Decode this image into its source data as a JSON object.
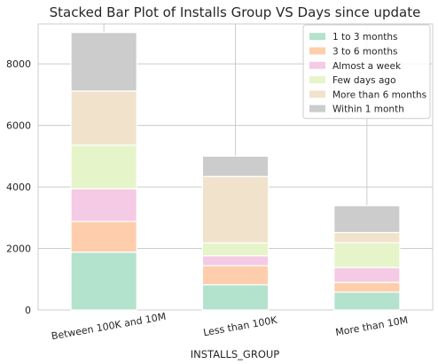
{
  "chart_data": {
    "type": "bar",
    "stacked": true,
    "title": "Stacked Bar Plot of Installs Group VS Days since update",
    "xlabel": "INSTALLS_GROUP",
    "ylabel": "",
    "categories": [
      "Between 100K and 10M",
      "Less than 100K",
      "More than 10M"
    ],
    "ylim": [
      0,
      9300
    ],
    "yticks": [
      0,
      2000,
      4000,
      6000,
      8000
    ],
    "grid": true,
    "legend_position": "top-right",
    "series": [
      {
        "name": "1 to 3 months",
        "color": "#b3e2cd",
        "values": [
          1880,
          820,
          580
        ]
      },
      {
        "name": "3 to 6 months",
        "color": "#fdcdac",
        "values": [
          1000,
          620,
          320
        ]
      },
      {
        "name": "Almost a week",
        "color": "#f4cae4",
        "values": [
          1060,
          320,
          480
        ]
      },
      {
        "name": "Few days ago",
        "color": "#e6f5c9",
        "values": [
          1420,
          420,
          810
        ]
      },
      {
        "name": "More than 6 months",
        "color": "#f1e2cc",
        "values": [
          1760,
          2160,
          330
        ]
      },
      {
        "name": "Within 1 month",
        "color": "#cccccc",
        "values": [
          1900,
          660,
          870
        ]
      }
    ]
  }
}
